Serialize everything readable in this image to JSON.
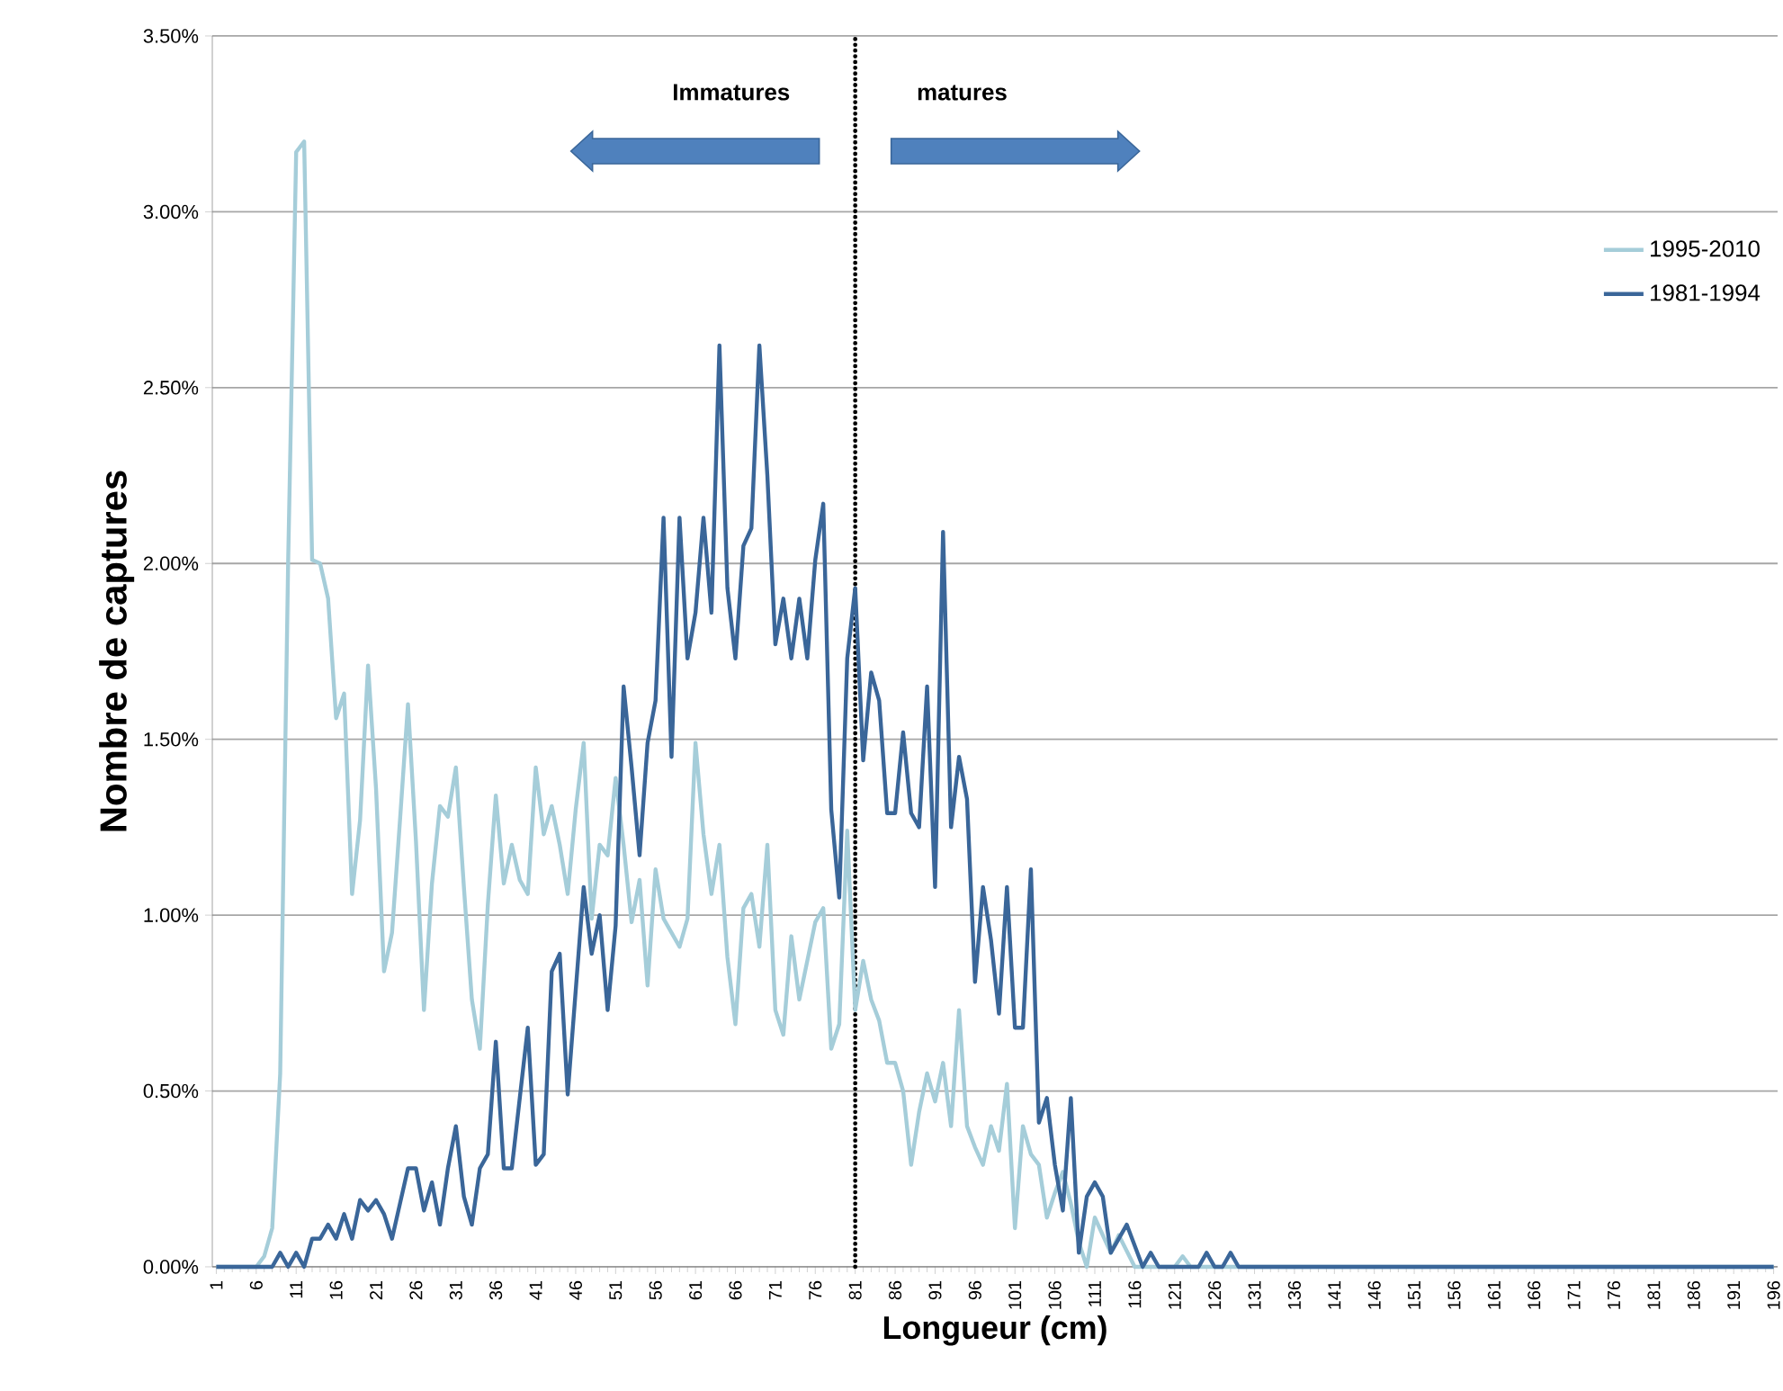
{
  "chart_data": {
    "type": "line",
    "xlabel": "Longueur (cm)",
    "ylabel": "Nombre de captures",
    "xlim": [
      0.5,
      196.5
    ],
    "ylim": [
      0,
      3.5
    ],
    "xticks": [
      1,
      6,
      11,
      16,
      21,
      26,
      31,
      36,
      41,
      46,
      51,
      56,
      61,
      66,
      71,
      76,
      81,
      86,
      91,
      96,
      101,
      106,
      111,
      116,
      121,
      126,
      131,
      136,
      141,
      146,
      151,
      156,
      161,
      166,
      171,
      176,
      181,
      186,
      191,
      196
    ],
    "yticks": [
      {
        "value": 0,
        "label": "0.00%"
      },
      {
        "value": 0.5,
        "label": "0.50%"
      },
      {
        "value": 1,
        "label": "1.00%"
      },
      {
        "value": 1.5,
        "label": "1.50%"
      },
      {
        "value": 2,
        "label": "2.00%"
      },
      {
        "value": 2.5,
        "label": "2.50%"
      },
      {
        "value": 3,
        "label": "3.00%"
      },
      {
        "value": 3.5,
        "label": "3.50%"
      }
    ],
    "grid": "y",
    "legend": "top right",
    "marker": "none",
    "line_style": "solid",
    "annotations": [
      "Immatures",
      "matures"
    ],
    "ref_lines": [
      {
        "axis": "x",
        "value": 81,
        "color": "#000000",
        "line_style": "dotted"
      }
    ],
    "series": [
      {
        "name": "1995-2010",
        "color": "#a5cdd9",
        "x": [
          1,
          6,
          7,
          8,
          9,
          10,
          11,
          12,
          13,
          14,
          15,
          16,
          17,
          18,
          19,
          20,
          21,
          22,
          23,
          24,
          25,
          26,
          27,
          28,
          29,
          30,
          31,
          32,
          33,
          34,
          35,
          36,
          37,
          38,
          39,
          40,
          41,
          42,
          43,
          44,
          45,
          46,
          47,
          48,
          49,
          50,
          51,
          52,
          53,
          54,
          55,
          56,
          57,
          58,
          59,
          60,
          61,
          62,
          63,
          64,
          65,
          66,
          67,
          68,
          69,
          70,
          71,
          72,
          73,
          74,
          75,
          76,
          77,
          78,
          79,
          80,
          81,
          82,
          83,
          84,
          85,
          86,
          87,
          88,
          89,
          90,
          91,
          92,
          93,
          94,
          95,
          96,
          97,
          98,
          99,
          100,
          101,
          102,
          103,
          104,
          105,
          106,
          107,
          108,
          109,
          110,
          111,
          113,
          114,
          116,
          121,
          122,
          123,
          196
        ],
        "values": [
          0,
          0,
          0.03,
          0.11,
          0.55,
          2.01,
          3.17,
          3.2,
          2.01,
          2.0,
          1.9,
          1.56,
          1.63,
          1.06,
          1.27,
          1.71,
          1.36,
          0.84,
          0.95,
          1.27,
          1.6,
          1.21,
          0.73,
          1.09,
          1.31,
          1.28,
          1.42,
          1.08,
          0.76,
          0.62,
          1.03,
          1.34,
          1.09,
          1.2,
          1.1,
          1.06,
          1.42,
          1.23,
          1.31,
          1.2,
          1.06,
          1.3,
          1.49,
          0.99,
          1.2,
          1.17,
          1.39,
          1.2,
          0.98,
          1.1,
          0.8,
          1.13,
          0.99,
          0.95,
          0.91,
          0.99,
          1.49,
          1.23,
          1.06,
          1.2,
          0.88,
          0.69,
          1.02,
          1.06,
          0.91,
          1.2,
          0.73,
          0.66,
          0.94,
          0.76,
          0.87,
          0.98,
          1.02,
          0.62,
          0.69,
          1.24,
          0.73,
          0.87,
          0.76,
          0.7,
          0.58,
          0.58,
          0.5,
          0.29,
          0.44,
          0.55,
          0.47,
          0.58,
          0.4,
          0.73,
          0.4,
          0.34,
          0.29,
          0.4,
          0.33,
          0.52,
          0.11,
          0.4,
          0.32,
          0.29,
          0.14,
          0.21,
          0.27,
          0.18,
          0.07,
          0,
          0.14,
          0.04,
          0.09,
          0,
          0,
          0.03,
          0,
          0
        ]
      },
      {
        "name": "1981-1994",
        "color": "#3a6699",
        "x": [
          1,
          8,
          9,
          10,
          11,
          12,
          13,
          14,
          15,
          16,
          17,
          18,
          19,
          20,
          21,
          22,
          23,
          24,
          25,
          26,
          27,
          28,
          29,
          30,
          31,
          32,
          33,
          34,
          35,
          36,
          37,
          38,
          39,
          40,
          41,
          42,
          43,
          44,
          45,
          47,
          48,
          49,
          50,
          51,
          52,
          53,
          54,
          55,
          56,
          57,
          58,
          59,
          60,
          61,
          62,
          63,
          64,
          65,
          66,
          67,
          68,
          69,
          70,
          71,
          72,
          73,
          74,
          75,
          76,
          77,
          78,
          79,
          80,
          81,
          82,
          83,
          84,
          85,
          86,
          87,
          88,
          89,
          90,
          91,
          92,
          93,
          94,
          95,
          96,
          97,
          98,
          99,
          100,
          101,
          102,
          103,
          104,
          105,
          106,
          107,
          108,
          109,
          110,
          111,
          112,
          113,
          115,
          117,
          118,
          119,
          124,
          125,
          126,
          127,
          128,
          129,
          196
        ],
        "values": [
          0,
          0,
          0.04,
          0,
          0.04,
          0,
          0.08,
          0.08,
          0.12,
          0.08,
          0.15,
          0.08,
          0.19,
          0.16,
          0.19,
          0.15,
          0.08,
          0.18,
          0.28,
          0.28,
          0.16,
          0.24,
          0.12,
          0.28,
          0.4,
          0.2,
          0.12,
          0.28,
          0.32,
          0.64,
          0.28,
          0.28,
          0.48,
          0.68,
          0.29,
          0.32,
          0.84,
          0.89,
          0.49,
          1.08,
          0.89,
          1.0,
          0.73,
          0.97,
          1.65,
          1.42,
          1.17,
          1.49,
          1.61,
          2.13,
          1.45,
          2.13,
          1.73,
          1.86,
          2.13,
          1.86,
          2.62,
          1.93,
          1.73,
          2.05,
          2.1,
          2.62,
          2.25,
          1.77,
          1.9,
          1.73,
          1.9,
          1.73,
          2.01,
          2.17,
          1.3,
          1.05,
          1.73,
          1.93,
          1.44,
          1.69,
          1.61,
          1.29,
          1.29,
          1.52,
          1.29,
          1.25,
          1.65,
          1.08,
          2.09,
          1.25,
          1.45,
          1.33,
          0.81,
          1.08,
          0.93,
          0.72,
          1.08,
          0.68,
          0.68,
          1.13,
          0.41,
          0.48,
          0.29,
          0.16,
          0.48,
          0.04,
          0.2,
          0.24,
          0.2,
          0.04,
          0.12,
          0,
          0.04,
          0,
          0,
          0.04,
          0,
          0,
          0.04,
          0,
          0
        ]
      }
    ]
  }
}
